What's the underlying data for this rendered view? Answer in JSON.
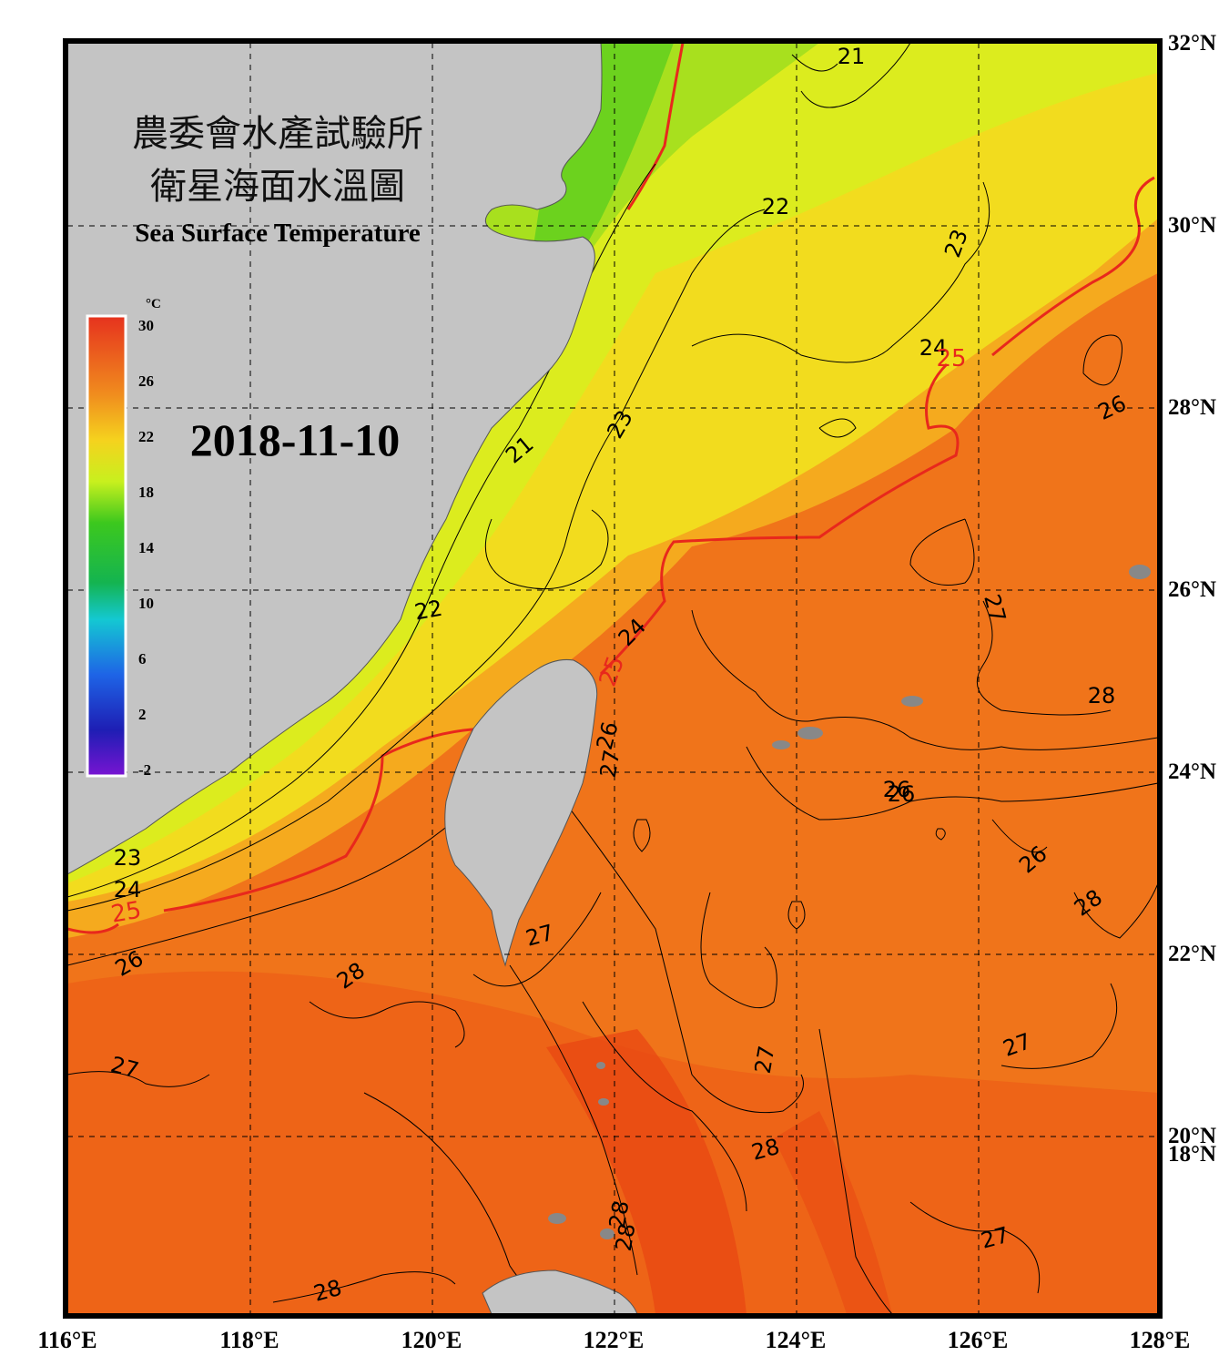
{
  "title": {
    "line1": "農委會水產試驗所",
    "line2": "衛星海面水溫圖",
    "line3": "Sea Surface Temperature"
  },
  "date": "2018-11-10",
  "colorbar": {
    "unit": "°C",
    "ticks": [
      "30",
      "26",
      "22",
      "18",
      "14",
      "10",
      "6",
      "2",
      "-2"
    ],
    "colors": [
      "#e6321e",
      "#f08c1e",
      "#f5d21e",
      "#c8f01e",
      "#3cc81e",
      "#14b450",
      "#14c8d2",
      "#1e64e6",
      "#1e1eb4",
      "#7814d2"
    ]
  },
  "axes": {
    "lon_labels": [
      "116°E",
      "118°E",
      "120°E",
      "122°E",
      "124°E",
      "126°E",
      "128°E"
    ],
    "lat_labels": [
      "32°N",
      "30°N",
      "28°N",
      "26°N",
      "24°N",
      "22°N",
      "20°N",
      "18°N"
    ]
  },
  "contour_labels": [
    {
      "text": "21"
    },
    {
      "text": "22"
    },
    {
      "text": "23"
    },
    {
      "text": "24"
    },
    {
      "text": "25"
    },
    {
      "text": "26"
    },
    {
      "text": "27"
    },
    {
      "text": "28"
    },
    {
      "text": "21"
    },
    {
      "text": "23"
    },
    {
      "text": "22"
    },
    {
      "text": "24"
    },
    {
      "text": "25"
    },
    {
      "text": "26"
    },
    {
      "text": "27"
    },
    {
      "text": "26"
    },
    {
      "text": "26"
    },
    {
      "text": "27"
    },
    {
      "text": "23"
    },
    {
      "text": "24"
    },
    {
      "text": "25"
    },
    {
      "text": "26"
    },
    {
      "text": "28"
    },
    {
      "text": "27"
    },
    {
      "text": "27"
    },
    {
      "text": "28"
    },
    {
      "text": "27"
    },
    {
      "text": "28"
    },
    {
      "text": "28"
    },
    {
      "text": "28"
    },
    {
      "text": "27"
    },
    {
      "text": "28"
    },
    {
      "text": "26"
    }
  ],
  "colors": {
    "land": "#c4c4c4",
    "frame": "#000000",
    "iso25": "#e8281c"
  }
}
